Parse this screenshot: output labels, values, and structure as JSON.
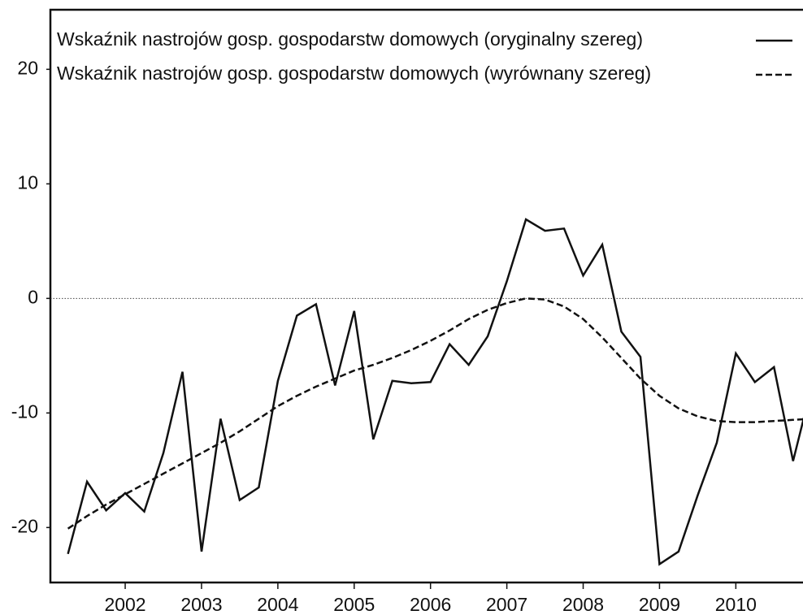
{
  "chart_data": {
    "type": "line",
    "x": [
      2001.25,
      2001.5,
      2001.75,
      2002.0,
      2002.25,
      2002.5,
      2002.75,
      2003.0,
      2003.25,
      2003.5,
      2003.75,
      2004.0,
      2004.25,
      2004.5,
      2004.75,
      2005.0,
      2005.25,
      2005.5,
      2005.75,
      2006.0,
      2006.25,
      2006.5,
      2006.75,
      2007.0,
      2007.25,
      2007.5,
      2007.75,
      2008.0,
      2008.25,
      2008.5,
      2008.75,
      2009.0,
      2009.25,
      2009.5,
      2009.75,
      2010.0,
      2010.25,
      2010.5,
      2010.75,
      2011.0
    ],
    "series": [
      {
        "name": "Wskaźnik nastrojów gosp. gospodarstw domowych (oryginalny szereg)",
        "color": "#111111",
        "dash": false,
        "values": [
          -22.3,
          -16.0,
          -18.5,
          -17.0,
          -18.6,
          -13.5,
          -6.4,
          -22.1,
          -10.5,
          -17.6,
          -16.5,
          -7.2,
          -1.5,
          -0.5,
          -7.6,
          -1.1,
          -12.3,
          -7.2,
          -7.4,
          -7.3,
          -4.0,
          -5.8,
          -3.3,
          1.5,
          6.9,
          5.9,
          6.1,
          2.0,
          4.7,
          -2.9,
          -5.1,
          -23.2,
          -22.1,
          -17.2,
          -12.6,
          -4.8,
          -7.3,
          -6.0,
          -14.2,
          -7.5
        ]
      },
      {
        "name": "Wskaźnik nastrojów gosp. gospodarstw domowych (wyrównany szereg)",
        "color": "#111111",
        "dash": true,
        "values": [
          -20.1,
          -19.0,
          -18.0,
          -17.1,
          -16.2,
          -15.3,
          -14.4,
          -13.5,
          -12.6,
          -11.6,
          -10.5,
          -9.4,
          -8.5,
          -7.7,
          -7.0,
          -6.3,
          -5.8,
          -5.2,
          -4.5,
          -3.7,
          -2.8,
          -1.8,
          -1.0,
          -0.4,
          0.0,
          -0.1,
          -0.7,
          -1.8,
          -3.4,
          -5.2,
          -7.0,
          -8.5,
          -9.6,
          -10.3,
          -10.7,
          -10.8,
          -10.8,
          -10.7,
          -10.6,
          -10.5
        ]
      }
    ],
    "xlim": [
      2001.02,
      2010.88
    ],
    "xticks": [
      2002,
      2003,
      2004,
      2005,
      2006,
      2007,
      2008,
      2009,
      2010
    ],
    "ylim": [
      -24.8,
      25.2
    ],
    "yticks": [
      -20,
      -10,
      0,
      10,
      20
    ],
    "hlines": [
      0
    ],
    "legend": "upper-left"
  }
}
